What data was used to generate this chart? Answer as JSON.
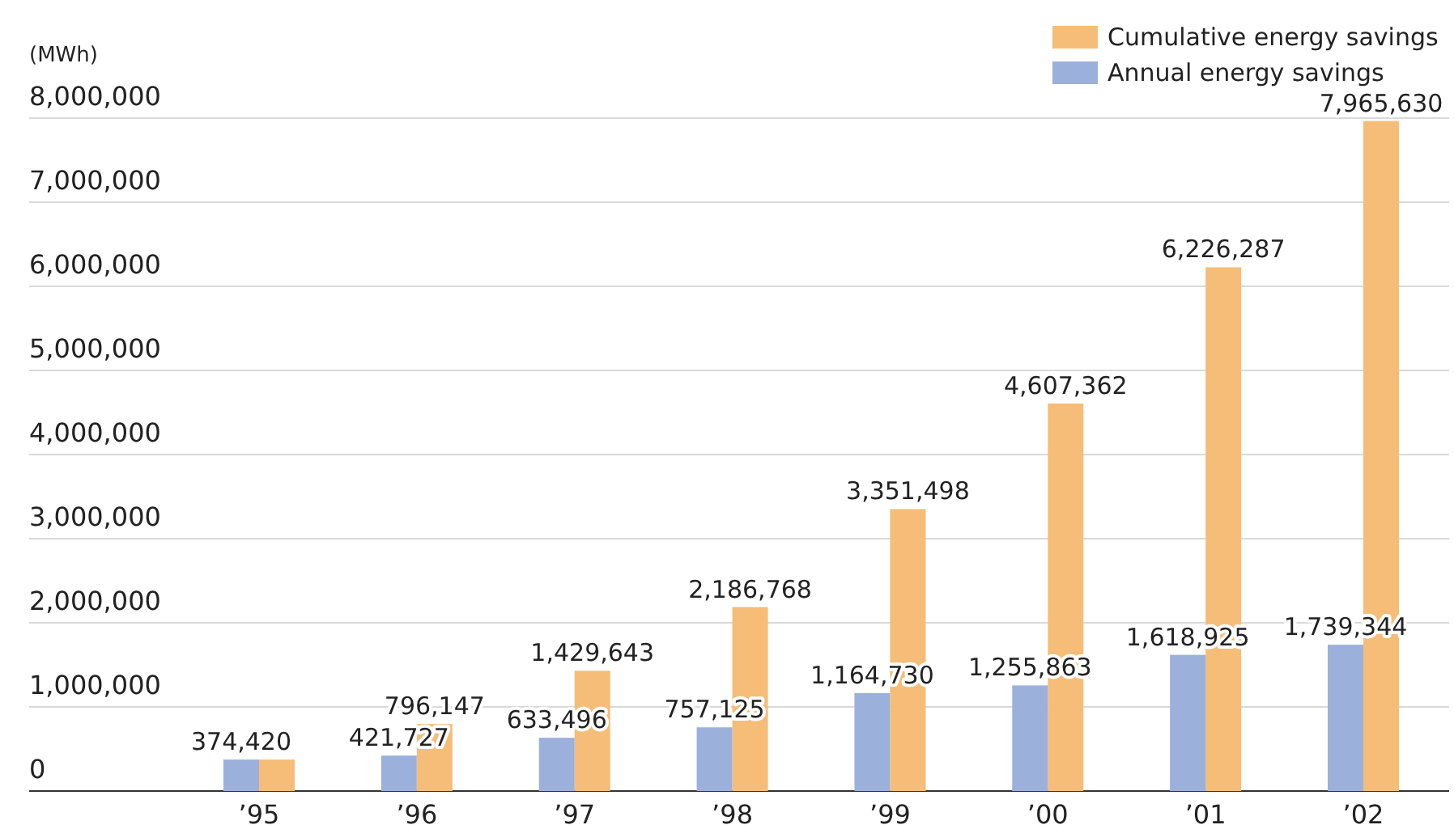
{
  "chart_data": {
    "type": "bar",
    "ylabel": "(MWh)",
    "categories": [
      "’95",
      "’96",
      "’97",
      "’98",
      "’99",
      "’00",
      "’01",
      "’02"
    ],
    "series": [
      {
        "name": "Cumulative energy savings",
        "color": "#f5bd78",
        "values": [
          374420,
          796147,
          1429643,
          2186768,
          3351498,
          4607362,
          6226287,
          7965630
        ],
        "value_labels": [
          null,
          "796,147",
          "1,429,643",
          "2,186,768",
          "3,351,498",
          "4,607,362",
          "6,226,287",
          "7,965,630"
        ]
      },
      {
        "name": "Annual energy savings",
        "color": "#9bb1dc",
        "values": [
          374420,
          421727,
          633496,
          757125,
          1164730,
          1255863,
          1618925,
          1739344
        ],
        "value_labels": [
          "374,420",
          "421,727",
          "633,496",
          "757,125",
          "1,164,730",
          "1,255,863",
          "1,618,925",
          "1,739,344"
        ]
      }
    ],
    "ylim": [
      0,
      8000000
    ],
    "yticks": [
      {
        "value": 0,
        "label": "0"
      },
      {
        "value": 1000000,
        "label": "1,000,000"
      },
      {
        "value": 2000000,
        "label": "2,000,000"
      },
      {
        "value": 3000000,
        "label": "3,000,000"
      },
      {
        "value": 4000000,
        "label": "4,000,000"
      },
      {
        "value": 5000000,
        "label": "5,000,000"
      },
      {
        "value": 6000000,
        "label": "6,000,000"
      },
      {
        "value": 7000000,
        "label": "7,000,000"
      },
      {
        "value": 8000000,
        "label": "8,000,000"
      }
    ],
    "grid": "y",
    "legend": "top right"
  }
}
